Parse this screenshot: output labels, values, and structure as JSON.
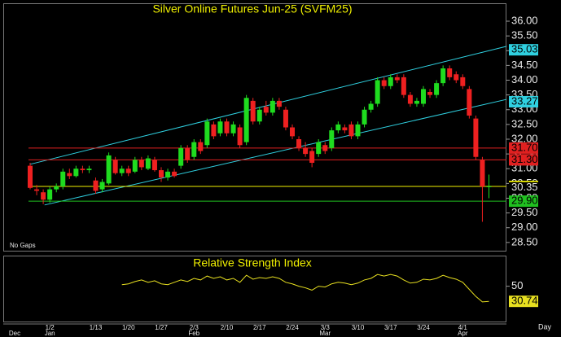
{
  "chart_data": {
    "type": "candlestick",
    "title": "Silver Online Futures Jun-25 (SVFM25)",
    "annotations": [
      "No Gaps"
    ],
    "xlabel": "Day",
    "categories": [
      null,
      null,
      null,
      "1/2",
      null,
      null,
      null,
      null,
      null,
      null,
      "1/13",
      null,
      null,
      null,
      null,
      "1/20",
      null,
      null,
      null,
      null,
      "1/27",
      null,
      null,
      null,
      null,
      "2/3",
      null,
      null,
      null,
      null,
      "2/10",
      null,
      null,
      null,
      null,
      "2/17",
      null,
      null,
      null,
      null,
      "2/24",
      null,
      null,
      null,
      null,
      "3/3",
      null,
      null,
      null,
      null,
      "3/10",
      null,
      null,
      null,
      null,
      "3/17",
      null,
      null,
      null,
      null,
      "3/24",
      null,
      null,
      null,
      null,
      null,
      "4/1",
      null,
      null,
      null,
      null
    ],
    "month_labels": [
      "Dec",
      null,
      null,
      "Jan",
      null,
      null,
      null,
      null,
      null,
      null,
      null,
      null,
      null,
      null,
      null,
      null,
      null,
      null,
      null,
      null,
      null,
      null,
      null,
      null,
      null,
      "Feb",
      null,
      null,
      null,
      null,
      null,
      null,
      null,
      null,
      null,
      null,
      null,
      null,
      null,
      null,
      null,
      null,
      null,
      null,
      null,
      "Mar",
      null,
      null,
      null,
      null,
      null,
      null,
      null,
      null,
      null,
      null,
      null,
      null,
      null,
      null,
      null,
      null,
      null,
      null,
      null,
      null,
      "Apr",
      null,
      null,
      null,
      null
    ],
    "ohlc": [
      [
        31.1,
        31.2,
        30.3,
        30.35
      ],
      [
        30.3,
        30.45,
        30.1,
        30.25
      ],
      [
        30.2,
        30.3,
        29.8,
        29.95
      ],
      [
        29.95,
        30.4,
        29.85,
        30.3
      ],
      [
        30.3,
        30.5,
        30.2,
        30.4
      ],
      [
        30.4,
        31.0,
        30.3,
        30.9
      ],
      [
        30.85,
        31.0,
        30.65,
        30.75
      ],
      [
        30.75,
        31.1,
        30.7,
        31.0
      ],
      [
        31.0,
        31.1,
        30.85,
        30.95
      ],
      [
        30.95,
        31.1,
        30.85,
        31.0
      ],
      [
        30.6,
        30.7,
        30.15,
        30.25
      ],
      [
        30.3,
        30.65,
        30.2,
        30.55
      ],
      [
        30.5,
        31.55,
        30.45,
        31.45
      ],
      [
        31.3,
        31.4,
        30.8,
        30.85
      ],
      [
        30.85,
        31.1,
        30.75,
        31.0
      ],
      [
        31.0,
        31.1,
        30.75,
        30.85
      ],
      [
        30.9,
        31.4,
        30.85,
        31.3
      ],
      [
        31.3,
        31.4,
        30.95,
        31.05
      ],
      [
        31.0,
        31.45,
        30.95,
        31.35
      ],
      [
        31.3,
        31.4,
        30.9,
        30.95
      ],
      [
        30.95,
        31.05,
        30.55,
        30.7
      ],
      [
        30.7,
        31.0,
        30.6,
        30.9
      ],
      [
        30.9,
        31.0,
        30.7,
        30.75
      ],
      [
        31.1,
        31.8,
        31.0,
        31.7
      ],
      [
        31.7,
        31.8,
        31.2,
        31.3
      ],
      [
        31.4,
        32.0,
        31.3,
        31.9
      ],
      [
        31.9,
        32.0,
        31.5,
        31.6
      ],
      [
        31.8,
        32.7,
        31.7,
        32.6
      ],
      [
        32.5,
        32.6,
        32.0,
        32.1
      ],
      [
        32.2,
        32.7,
        32.1,
        32.6
      ],
      [
        32.6,
        32.7,
        32.1,
        32.2
      ],
      [
        32.2,
        32.6,
        32.1,
        32.5
      ],
      [
        32.4,
        32.5,
        31.7,
        31.8
      ],
      [
        31.9,
        33.5,
        31.8,
        33.4
      ],
      [
        33.3,
        33.4,
        32.5,
        32.6
      ],
      [
        32.6,
        33.1,
        32.5,
        33.0
      ],
      [
        33.1,
        33.3,
        32.8,
        32.9
      ],
      [
        32.9,
        33.4,
        32.8,
        33.3
      ],
      [
        33.3,
        33.4,
        33.0,
        33.1
      ],
      [
        33.0,
        33.1,
        32.3,
        32.4
      ],
      [
        32.4,
        32.5,
        32.0,
        32.1
      ],
      [
        32.0,
        32.1,
        31.6,
        31.7
      ],
      [
        31.7,
        31.9,
        31.4,
        31.5
      ],
      [
        31.6,
        31.7,
        31.05,
        31.2
      ],
      [
        31.5,
        32.0,
        31.4,
        31.9
      ],
      [
        31.8,
        31.9,
        31.5,
        31.6
      ],
      [
        31.7,
        32.4,
        31.6,
        32.3
      ],
      [
        32.3,
        32.6,
        32.2,
        32.5
      ],
      [
        32.4,
        32.5,
        32.2,
        32.3
      ],
      [
        32.5,
        32.6,
        32.0,
        32.1
      ],
      [
        32.1,
        32.6,
        32.0,
        32.5
      ],
      [
        32.5,
        33.1,
        32.4,
        33.0
      ],
      [
        33.0,
        33.3,
        32.9,
        33.2
      ],
      [
        33.2,
        34.1,
        33.1,
        34.0
      ],
      [
        34.0,
        34.1,
        33.7,
        33.8
      ],
      [
        33.8,
        34.2,
        33.7,
        34.1
      ],
      [
        34.1,
        34.2,
        33.9,
        34.0
      ],
      [
        34.1,
        34.2,
        33.4,
        33.5
      ],
      [
        33.5,
        33.6,
        33.1,
        33.2
      ],
      [
        33.2,
        33.4,
        33.1,
        33.3
      ],
      [
        33.2,
        33.8,
        33.1,
        33.7
      ],
      [
        33.6,
        33.7,
        33.4,
        33.5
      ],
      [
        33.5,
        34.0,
        33.4,
        33.9
      ],
      [
        33.9,
        34.5,
        33.8,
        34.4
      ],
      [
        34.4,
        34.5,
        34.0,
        34.1
      ],
      [
        34.2,
        34.3,
        33.9,
        34.0
      ],
      [
        34.1,
        34.2,
        33.7,
        33.8
      ],
      [
        33.7,
        33.8,
        32.7,
        32.8
      ],
      [
        32.7,
        32.8,
        31.3,
        31.4
      ],
      [
        31.3,
        31.4,
        29.2,
        30.4
      ],
      [
        30.4,
        30.8,
        30.0,
        30.4
      ]
    ],
    "up_color": "#1fdc1f",
    "down_color": "#ee2020",
    "ylim": [
      28.22,
      36.58
    ],
    "yticks": [
      {
        "value": 28.5,
        "label": "28.50"
      },
      {
        "value": 29,
        "label": "29.00"
      },
      {
        "value": 29.5,
        "label": "29.50"
      },
      {
        "value": 30,
        "label": "30.00"
      },
      {
        "value": 30.5,
        "label": "30.50"
      },
      {
        "value": 31,
        "label": "31.00"
      },
      {
        "value": 31.5,
        "label": "31.50"
      },
      {
        "value": 32,
        "label": "32.00"
      },
      {
        "value": 32.5,
        "label": "32.50"
      },
      {
        "value": 33,
        "label": "33.00"
      },
      {
        "value": 33.5,
        "label": "33.50"
      },
      {
        "value": 34,
        "label": "34.00"
      },
      {
        "value": 34.5,
        "label": "34.50"
      },
      {
        "value": 35,
        "label": "35.00"
      },
      {
        "value": 35.5,
        "label": "35.50"
      },
      {
        "value": 36,
        "label": "36.00"
      }
    ],
    "trendlines": [
      {
        "color": "#2fd0e0",
        "points": [
          [
            0,
            31.15
          ],
          [
            72.7,
            35.15
          ]
        ]
      },
      {
        "color": "#2fd0e0",
        "points": [
          [
            2.2,
            29.77
          ],
          [
            72.7,
            33.35
          ]
        ]
      }
    ],
    "levels": [
      {
        "value": 31.7,
        "label": "31.70",
        "color": "#e02020",
        "line": true
      },
      {
        "value": 31.3,
        "label": "31.30",
        "color": "#e02020",
        "line": true
      },
      {
        "value": 30.4,
        "label": "30.40",
        "color": "#f0f000",
        "line": true
      },
      {
        "value": 29.9,
        "label": "29.90",
        "color": "#20c020",
        "line": true
      },
      {
        "value": 35.03,
        "label": "35.03",
        "color": "#2fd0e0",
        "line": false
      },
      {
        "value": 33.27,
        "label": "33.27",
        "color": "#2fd0e0",
        "line": false
      },
      {
        "value": 30.35,
        "label": "30.35",
        "color": "#000000",
        "line": false
      }
    ],
    "rsi": {
      "title": "Relative Strength Index",
      "color": "#e8e020",
      "ylim": [
        5,
        88
      ],
      "yticks": [
        50
      ],
      "values": [
        null,
        null,
        null,
        null,
        null,
        null,
        null,
        null,
        null,
        null,
        null,
        null,
        null,
        null,
        52,
        53,
        56,
        58,
        55,
        57,
        53,
        52,
        55,
        58,
        56,
        60,
        58,
        63,
        60,
        62,
        58,
        60,
        55,
        64,
        59,
        61,
        60,
        62,
        60,
        55,
        53,
        50,
        48,
        45,
        50,
        49,
        53,
        55,
        54,
        52,
        54,
        58,
        60,
        65,
        63,
        65,
        63,
        58,
        54,
        55,
        59,
        58,
        60,
        64,
        61,
        59,
        55,
        46,
        37,
        30,
        30.74
      ],
      "value_labels": [
        null,
        null,
        null,
        null,
        null,
        null,
        null,
        null,
        null,
        null,
        null,
        null,
        null,
        null,
        null,
        null,
        null,
        null,
        null,
        null,
        null,
        null,
        null,
        null,
        null,
        null,
        null,
        null,
        null,
        null,
        null,
        null,
        null,
        null,
        null,
        null,
        null,
        null,
        null,
        null,
        null,
        null,
        null,
        null,
        null,
        null,
        null,
        null,
        null,
        null,
        null,
        null,
        null,
        null,
        null,
        null,
        null,
        null,
        null,
        null,
        null,
        null,
        null,
        null,
        null,
        null,
        null,
        null,
        null,
        null,
        "30.74"
      ]
    }
  }
}
